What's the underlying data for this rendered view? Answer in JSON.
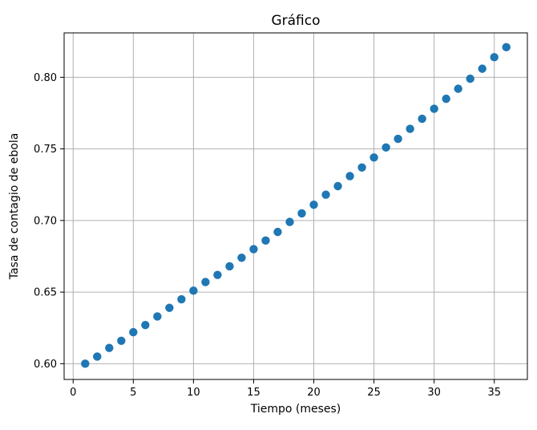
{
  "chart_data": {
    "type": "scatter",
    "title": "Gráfico",
    "xlabel": "Tiempo (meses)",
    "ylabel": "Tasa de contagio de ebola",
    "xlim": [
      -0.75,
      37.75
    ],
    "ylim": [
      0.589,
      0.831
    ],
    "x_ticks": [
      0,
      5,
      10,
      15,
      20,
      25,
      30,
      35
    ],
    "x_tick_labels": [
      "0",
      "5",
      "10",
      "15",
      "20",
      "25",
      "30",
      "35"
    ],
    "y_ticks": [
      0.6,
      0.65,
      0.7,
      0.75,
      0.8
    ],
    "y_tick_labels": [
      "0.60",
      "0.65",
      "0.70",
      "0.75",
      "0.80"
    ],
    "grid": true,
    "marker_color": "#1f77b4",
    "points": [
      {
        "x": 1,
        "y": 0.6
      },
      {
        "x": 2,
        "y": 0.605
      },
      {
        "x": 3,
        "y": 0.611
      },
      {
        "x": 4,
        "y": 0.616
      },
      {
        "x": 5,
        "y": 0.622
      },
      {
        "x": 6,
        "y": 0.627
      },
      {
        "x": 7,
        "y": 0.633
      },
      {
        "x": 8,
        "y": 0.639
      },
      {
        "x": 9,
        "y": 0.645
      },
      {
        "x": 10,
        "y": 0.651
      },
      {
        "x": 11,
        "y": 0.657
      },
      {
        "x": 12,
        "y": 0.662
      },
      {
        "x": 13,
        "y": 0.668
      },
      {
        "x": 14,
        "y": 0.674
      },
      {
        "x": 15,
        "y": 0.68
      },
      {
        "x": 16,
        "y": 0.686
      },
      {
        "x": 17,
        "y": 0.692
      },
      {
        "x": 18,
        "y": 0.699
      },
      {
        "x": 19,
        "y": 0.705
      },
      {
        "x": 20,
        "y": 0.711
      },
      {
        "x": 21,
        "y": 0.718
      },
      {
        "x": 22,
        "y": 0.724
      },
      {
        "x": 23,
        "y": 0.731
      },
      {
        "x": 24,
        "y": 0.737
      },
      {
        "x": 25,
        "y": 0.744
      },
      {
        "x": 26,
        "y": 0.751
      },
      {
        "x": 27,
        "y": 0.757
      },
      {
        "x": 28,
        "y": 0.764
      },
      {
        "x": 29,
        "y": 0.771
      },
      {
        "x": 30,
        "y": 0.778
      },
      {
        "x": 31,
        "y": 0.785
      },
      {
        "x": 32,
        "y": 0.792
      },
      {
        "x": 33,
        "y": 0.799
      },
      {
        "x": 34,
        "y": 0.806
      },
      {
        "x": 35,
        "y": 0.814
      },
      {
        "x": 36,
        "y": 0.821
      }
    ]
  }
}
